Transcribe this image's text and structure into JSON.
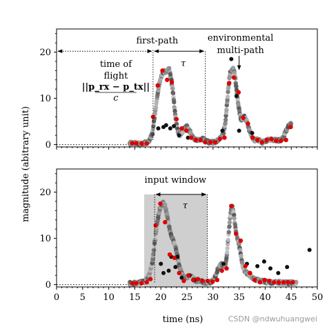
{
  "chart_data": [
    {
      "type": "scatter",
      "panel": "top",
      "xlim": [
        0,
        50
      ],
      "ylim": [
        -0.5,
        25
      ],
      "yticks": [
        0,
        10,
        20
      ],
      "ytick_labels": [
        "0",
        "10",
        "20"
      ],
      "xticks": [
        0,
        5,
        10,
        15,
        20,
        25,
        30,
        35,
        40,
        45,
        50
      ],
      "grid": false,
      "annotations": {
        "first_path": "first-path",
        "tau": "τ",
        "tof_line1": "time of",
        "tof_line2": "flight",
        "tof_num": "||p_rx − p_tx||",
        "tof_den": "c",
        "env_line1": "environmental",
        "env_line2": "multi-path"
      },
      "markers": {
        "tof_arrow_x": [
          0,
          18.5
        ],
        "tof_arrow_y": 20.2,
        "tau_arrow_x": [
          18.5,
          28.5
        ],
        "tau_arrow_y": 20.2,
        "first_path_line_x": 18.5,
        "tau_end_line_x": 28.5,
        "env_arrow": {
          "x": 35.0,
          "y_from": 19.2,
          "y_to": 16.2
        }
      },
      "red_points": {
        "x": [
          14.5,
          15.3,
          16.3,
          17.3,
          18.5,
          19.4,
          20.3,
          21.2,
          22.1,
          23.0,
          24.0,
          24.9,
          25.8,
          26.7,
          27.6,
          28.5,
          29.5,
          30.4,
          31.3,
          32.2,
          33.1,
          34.0,
          34.9,
          35.8,
          36.7,
          37.6,
          38.5,
          39.4,
          40.3,
          41.2,
          42.1,
          43.0,
          44.0,
          44.9
        ],
        "y": [
          0.3,
          0.3,
          0.2,
          0.2,
          6.0,
          12.8,
          16.0,
          14.0,
          13.5,
          5.5,
          3.5,
          3.0,
          1.5,
          1.0,
          1.0,
          0.5,
          0.5,
          0.5,
          1.2,
          1.5,
          13.3,
          14.5,
          11.3,
          5.8,
          4.5,
          1.5,
          1.0,
          0.5,
          1.0,
          1.2,
          0.8,
          0.8,
          1.0,
          3.8
        ]
      },
      "gray_curve": {
        "x": [
          14.0,
          15.0,
          16.0,
          17.0,
          17.8,
          18.4,
          18.8,
          19.2,
          19.6,
          20.0,
          20.4,
          20.8,
          21.2,
          21.6,
          22.0,
          22.3,
          22.6,
          22.9,
          23.2,
          23.6,
          24.0,
          24.5,
          25.0,
          25.5,
          26.0,
          26.5,
          27.0,
          27.5,
          28.0,
          28.5,
          29.0,
          29.5,
          30.0,
          30.5,
          31.0,
          31.5,
          32.0,
          32.4,
          32.7,
          33.0,
          33.3,
          33.6,
          33.9,
          34.2,
          34.5,
          34.8,
          35.1,
          35.4,
          35.7,
          36.0,
          36.5,
          37.0,
          37.5,
          38.0,
          38.5,
          39.0,
          39.5,
          40.0,
          40.5,
          41.0,
          41.5,
          42.0,
          42.5,
          43.0,
          43.5,
          44.0,
          44.5,
          45.0
        ],
        "y": [
          0.3,
          0.3,
          0.3,
          0.4,
          0.8,
          2.5,
          6.0,
          9.5,
          12.5,
          14.5,
          15.5,
          15.8,
          15.8,
          16.3,
          14.0,
          11.5,
          8.0,
          5.0,
          3.0,
          2.0,
          2.5,
          3.5,
          4.0,
          3.0,
          1.8,
          1.2,
          1.0,
          1.0,
          1.3,
          0.8,
          0.6,
          0.5,
          0.5,
          0.6,
          1.0,
          1.5,
          2.5,
          5.0,
          9.0,
          13.0,
          15.5,
          16.0,
          16.5,
          15.0,
          12.0,
          9.0,
          7.0,
          5.0,
          5.5,
          6.0,
          5.0,
          3.0,
          1.5,
          1.0,
          1.0,
          0.8,
          0.5,
          0.8,
          1.0,
          1.2,
          1.0,
          1.0,
          0.9,
          1.0,
          1.5,
          3.0,
          4.0,
          4.5
        ]
      },
      "black_points": {
        "x": [
          20.5,
          21.0,
          21.8,
          22.5,
          25.2,
          31.8,
          33.5,
          34.5,
          35.0,
          37.5,
          19.5,
          23.5
        ],
        "y": [
          3.8,
          4.2,
          3.5,
          4.0,
          1.5,
          3.0,
          18.5,
          10.5,
          3.0,
          2.5,
          3.5,
          2.0
        ]
      }
    },
    {
      "type": "scatter",
      "panel": "bottom",
      "xlim": [
        0,
        50
      ],
      "ylim": [
        -0.5,
        25
      ],
      "yticks": [
        0,
        10,
        20
      ],
      "ytick_labels": [
        "0",
        "10",
        "20"
      ],
      "xticks": [
        0,
        5,
        10,
        15,
        20,
        25,
        30,
        35,
        40,
        45,
        50
      ],
      "xtick_labels": [
        "0",
        "5",
        "10",
        "15",
        "20",
        "25",
        "30",
        "35",
        "40",
        "45",
        "50"
      ],
      "xlabel": "time (ns)",
      "ylabel": "magnitude (abitrary unit)",
      "grid": false,
      "annotations": {
        "input_window": "input window",
        "tau": "τ"
      },
      "markers": {
        "window_x": [
          16.8,
          28.9
        ],
        "window_top": 19.5,
        "tau_arrow_x": [
          18.8,
          28.9
        ],
        "tau_arrow_y": 19.5,
        "window_start_line_x": 18.8,
        "window_end_line_x": 28.9
      },
      "red_points": {
        "x": [
          14.5,
          15.3,
          16.3,
          17.3,
          18.0,
          19.0,
          19.9,
          20.8,
          21.7,
          22.6,
          23.5,
          24.4,
          25.3,
          26.2,
          27.1,
          28.0,
          29.0,
          29.9,
          30.8,
          31.7,
          32.6,
          33.5,
          34.4,
          35.3,
          36.2,
          37.1,
          38.0,
          39.0,
          39.9,
          40.8,
          41.7,
          42.6,
          43.5,
          44.4,
          45.3
        ],
        "y": [
          0.3,
          0.3,
          0.3,
          0.5,
          1.2,
          12.8,
          17.5,
          13.5,
          6.5,
          5.8,
          2.5,
          0.8,
          2.0,
          1.0,
          1.2,
          0.8,
          0.8,
          0.6,
          1.0,
          3.0,
          3.5,
          17.0,
          11.0,
          9.5,
          4.0,
          2.5,
          1.0,
          0.5,
          1.0,
          0.8,
          0.5,
          0.5,
          0.5,
          0.5,
          0.5
        ]
      },
      "gray_curve": {
        "x": [
          14.0,
          15.0,
          16.0,
          17.0,
          17.8,
          18.4,
          18.8,
          19.2,
          19.6,
          20.0,
          20.4,
          20.8,
          21.2,
          21.6,
          22.0,
          22.4,
          22.8,
          23.2,
          23.6,
          24.0,
          24.5,
          25.0,
          25.5,
          26.0,
          26.5,
          27.0,
          27.5,
          28.0,
          28.5,
          29.0,
          29.5,
          30.0,
          30.5,
          31.0,
          31.5,
          32.0,
          32.4,
          32.7,
          33.0,
          33.3,
          33.6,
          33.9,
          34.2,
          34.5,
          34.8,
          35.1,
          35.4,
          35.7,
          36.0,
          36.5,
          37.0,
          37.5,
          38.0,
          38.5,
          39.0,
          39.5,
          40.0,
          41.0,
          42.0,
          43.0,
          44.0,
          45.0,
          46.0
        ],
        "y": [
          0.3,
          0.3,
          0.4,
          0.8,
          2.0,
          5.0,
          9.0,
          12.5,
          15.5,
          17.0,
          17.8,
          17.0,
          15.0,
          12.5,
          10.5,
          9.5,
          8.0,
          6.0,
          4.0,
          2.5,
          1.5,
          1.5,
          2.0,
          1.5,
          1.0,
          0.8,
          0.8,
          0.6,
          0.5,
          0.5,
          0.5,
          1.0,
          2.0,
          3.5,
          4.5,
          4.0,
          4.0,
          7.0,
          11.0,
          15.0,
          17.0,
          16.0,
          13.0,
          11.0,
          9.5,
          8.0,
          6.0,
          4.0,
          3.0,
          2.5,
          2.0,
          1.5,
          1.2,
          1.0,
          0.8,
          0.8,
          0.6,
          0.5,
          0.5,
          0.5,
          0.4,
          0.4,
          0.4
        ]
      },
      "black_points": {
        "x": [
          20.0,
          20.5,
          21.5,
          22.0,
          22.8,
          24.0,
          25.5,
          26.5,
          32.0,
          36.5,
          38.5,
          39.8,
          41.0,
          42.5,
          44.2,
          48.5,
          23.2
        ],
        "y": [
          4.5,
          2.5,
          3.0,
          6.0,
          3.8,
          1.5,
          2.0,
          1.0,
          4.5,
          4.5,
          4.0,
          5.0,
          3.5,
          2.5,
          3.8,
          7.5,
          6.0
        ]
      }
    }
  ],
  "watermark": "CSDN @ndwuhuangwei"
}
